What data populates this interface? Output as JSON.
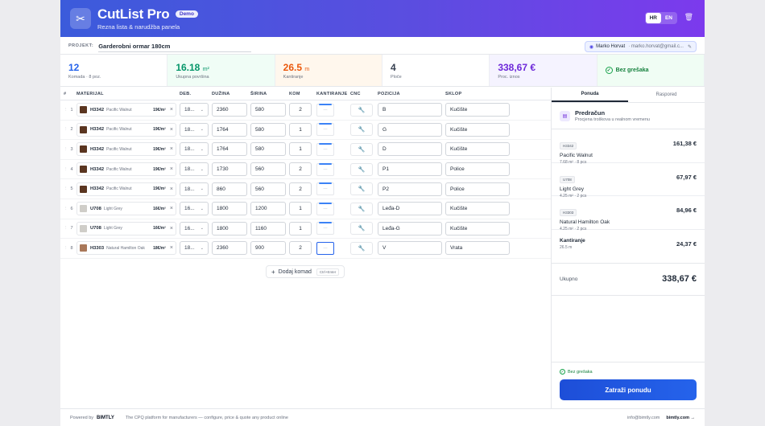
{
  "header": {
    "title": "CutList Pro",
    "badge": "Demo",
    "subtitle": "Rezna lista & narudžba panela",
    "lang_hr": "HR",
    "lang_en": "EN"
  },
  "project": {
    "label": "PROJEKT:",
    "name": "Garderobni ormar 180cm",
    "user_name": "Marko Horvat",
    "user_email": "· marko.horvat@gmail.c..."
  },
  "stats": {
    "count_value": "12",
    "count_label": "Komada",
    "count_extra": "· 8 poz.",
    "area_value": "16.18",
    "area_unit": "m²",
    "area_label": "Ukupna površina",
    "edge_value": "26.5",
    "edge_unit": "m",
    "edge_label": "Kantiranje",
    "boards_value": "4",
    "boards_label": "Ploče",
    "price_value": "338,67 €",
    "price_label": "Proc. iznos",
    "status_label": "Bez grešaka"
  },
  "table": {
    "headers": {
      "num": "#",
      "material": "MATERIJAL",
      "deb": "DEB.",
      "length": "DUŽINA",
      "width": "ŠIRINA",
      "qty": "KOM",
      "edge": "KANTIRANJE",
      "cnc": "CNC",
      "position": "POZICIJA",
      "assembly": "SKLOP"
    },
    "rows": [
      {
        "n": "1",
        "code": "H3342",
        "name": "Pacific Walnut",
        "price": "19€/m²",
        "deb": "18...",
        "len": "2360",
        "wid": "580",
        "qty": "2",
        "pos": "B",
        "sklop": "Kučište"
      },
      {
        "n": "2",
        "code": "H3342",
        "name": "Pacific Walnut",
        "price": "19€/m²",
        "deb": "18...",
        "len": "1764",
        "wid": "580",
        "qty": "1",
        "pos": "G",
        "sklop": "Kučište"
      },
      {
        "n": "3",
        "code": "H3342",
        "name": "Pacific Walnut",
        "price": "19€/m²",
        "deb": "18...",
        "len": "1764",
        "wid": "580",
        "qty": "1",
        "pos": "D",
        "sklop": "Kučište"
      },
      {
        "n": "4",
        "code": "H3342",
        "name": "Pacific Walnut",
        "price": "19€/m²",
        "deb": "18...",
        "len": "1730",
        "wid": "560",
        "qty": "2",
        "pos": "P1",
        "sklop": "Police"
      },
      {
        "n": "5",
        "code": "H3342",
        "name": "Pacific Walnut",
        "price": "19€/m²",
        "deb": "18...",
        "len": "860",
        "wid": "560",
        "qty": "2",
        "pos": "P2",
        "sklop": "Police"
      },
      {
        "n": "6",
        "code": "U708",
        "name": "Light Grey",
        "price": "16€/m²",
        "deb": "16...",
        "len": "1800",
        "wid": "1200",
        "qty": "1",
        "pos": "Leđa-D",
        "sklop": "Kučište"
      },
      {
        "n": "7",
        "code": "U708",
        "name": "Light Grey",
        "price": "16€/m²",
        "deb": "16...",
        "len": "1800",
        "wid": "1160",
        "qty": "1",
        "pos": "Leđa-G",
        "sklop": "Kučište"
      },
      {
        "n": "8",
        "code": "H3303",
        "name": "Natural Hamilton Oak",
        "price": "18€/m²",
        "deb": "18...",
        "len": "2360",
        "wid": "900",
        "qty": "2",
        "pos": "V",
        "sklop": "Vrata"
      }
    ],
    "add_row_label": "Dodaj komad",
    "add_row_shortcut": "Ctrl+Enter"
  },
  "swatch_colors": {
    "H3342": "#5a3520",
    "U708": "#cfcdc8",
    "H3303": "#a9785a"
  },
  "side": {
    "tab_offer": "Ponuda",
    "tab_layout": "Raspored",
    "pred_title": "Predračun",
    "pred_sub": "Procjena troškova u realnom vremenu",
    "items": [
      {
        "code": "H3342",
        "name": "Pacific Walnut",
        "meta": "7.68 m² · 8 pcs",
        "price": "161,38 €"
      },
      {
        "code": "U708",
        "name": "Light Grey",
        "meta": "4.25 m² · 2 pcs",
        "price": "67,97 €"
      },
      {
        "code": "H3303",
        "name": "Natural Hamilton Oak",
        "meta": "4.25 m² · 2 pcs",
        "price": "84,96 €"
      }
    ],
    "edge_name": "Kantiranje",
    "edge_meta": "26.5 m",
    "edge_price": "24,37 €",
    "total_label": "Ukupno",
    "total_value": "338,67 €",
    "status": "Bez grešaka",
    "quote_button": "Zatraži ponudu"
  },
  "footer": {
    "powered": "Powered by",
    "brand": "BIMTLY",
    "tagline": "The CPQ platform for manufacturers — configure, price & quote any product online",
    "email": "info@bimtly.com",
    "site": "bimtly.com →"
  }
}
